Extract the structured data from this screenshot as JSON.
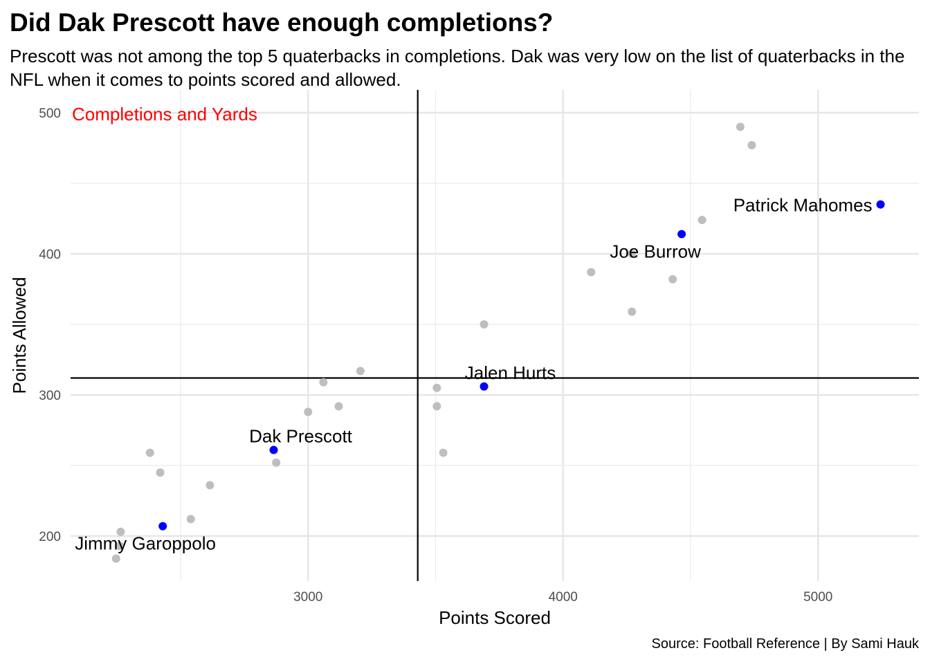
{
  "chart_data": {
    "type": "scatter",
    "title": "Did Dak Prescott have enough completions?",
    "subtitle": "Prescott was not among the top 5 quaterbacks in completions. Dak was very low on the list of quaterbacks in the NFL when it comes to points scored and allowed.",
    "caption": "Source: Football Reference | By Sami Hauk",
    "annotation": "Completions and Yards",
    "annotation_color": "#ff0000",
    "xlabel": "Points Scored",
    "ylabel": "Points Allowed",
    "xlim": [
      2150,
      5400
    ],
    "ylim": [
      170,
      517
    ],
    "x_ticks": [
      3000,
      4000,
      5000
    ],
    "y_ticks": [
      200,
      300,
      400,
      500
    ],
    "x_minor_ticks": [
      2500,
      3500,
      4500
    ],
    "y_minor_ticks": [
      250,
      350,
      450
    ],
    "grid": true,
    "ref_lines": {
      "x": 3430,
      "y": 312
    },
    "point_color_default": "#bebebe",
    "point_color_highlight": "#0000ff",
    "points": [
      {
        "x": 2247,
        "y": 184
      },
      {
        "x": 2262,
        "y": 193
      },
      {
        "x": 2265,
        "y": 203
      },
      {
        "x": 2430,
        "y": 207,
        "label": "Jimmy Garoppolo",
        "highlight": true
      },
      {
        "x": 2540,
        "y": 212
      },
      {
        "x": 2615,
        "y": 236
      },
      {
        "x": 2420,
        "y": 245
      },
      {
        "x": 2380,
        "y": 259
      },
      {
        "x": 2865,
        "y": 261,
        "label": "Dak Prescott",
        "highlight": true
      },
      {
        "x": 2875,
        "y": 252
      },
      {
        "x": 3000,
        "y": 288
      },
      {
        "x": 3060,
        "y": 309
      },
      {
        "x": 3120,
        "y": 292
      },
      {
        "x": 3205,
        "y": 317
      },
      {
        "x": 3505,
        "y": 305
      },
      {
        "x": 3505,
        "y": 292
      },
      {
        "x": 3530,
        "y": 259
      },
      {
        "x": 3690,
        "y": 306,
        "label": "Jalen Hurts",
        "highlight": true
      },
      {
        "x": 3690,
        "y": 350
      },
      {
        "x": 4110,
        "y": 387
      },
      {
        "x": 4270,
        "y": 400
      },
      {
        "x": 4270,
        "y": 359
      },
      {
        "x": 4430,
        "y": 382
      },
      {
        "x": 4465,
        "y": 414,
        "label": "Joe Burrow",
        "highlight": true
      },
      {
        "x": 4545,
        "y": 424
      },
      {
        "x": 4695,
        "y": 490
      },
      {
        "x": 4740,
        "y": 477
      },
      {
        "x": 5245,
        "y": 435,
        "label": "Patrick Mahomes",
        "highlight": true
      }
    ]
  }
}
